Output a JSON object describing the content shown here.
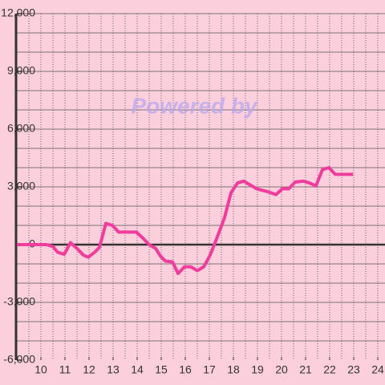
{
  "chart_data": {
    "type": "line",
    "watermark": "Powered by",
    "x": [
      9.0,
      10.23,
      10.5,
      10.7,
      10.97,
      11.23,
      11.5,
      11.77,
      11.97,
      12.23,
      12.43,
      12.7,
      12.97,
      13.23,
      13.5,
      13.97,
      14.23,
      14.5,
      14.77,
      14.97,
      15.17,
      15.47,
      15.7,
      15.97,
      16.23,
      16.5,
      16.77,
      17.03,
      17.3,
      17.63,
      17.9,
      18.17,
      18.43,
      18.7,
      18.97,
      19.43,
      19.77,
      20.03,
      20.3,
      20.57,
      20.9,
      21.17,
      21.43,
      21.7,
      21.97,
      22.23,
      22.97
    ],
    "series": [
      {
        "color": "#f03c9c",
        "values": [
          0,
          0,
          -100,
          -400,
          -500,
          100,
          -200,
          -550,
          -650,
          -400,
          -150,
          1100,
          1000,
          650,
          650,
          650,
          350,
          0,
          -200,
          -600,
          -850,
          -900,
          -1500,
          -1150,
          -1150,
          -1350,
          -1150,
          -550,
          300,
          1400,
          2700,
          3200,
          3300,
          3100,
          2900,
          2750,
          2600,
          2900,
          2900,
          3250,
          3300,
          3200,
          3050,
          3900,
          4000,
          3650,
          3650
        ]
      }
    ],
    "xlim": [
      9,
      24.3
    ],
    "xticks": [
      10,
      11,
      12,
      13,
      14,
      15,
      16,
      17,
      18,
      19,
      20,
      21,
      22,
      23,
      24
    ],
    "x_minor_grid": [
      9.5,
      10,
      10.5,
      11,
      11.5,
      12,
      12.5,
      13,
      13.5,
      14,
      14.5,
      15,
      15.5,
      16,
      16.5,
      17,
      17.5,
      18,
      18.5,
      19,
      19.5,
      20,
      20.5,
      21,
      21.5,
      22,
      22.5,
      23,
      23.5,
      24
    ],
    "ylim": [
      -6000,
      12000
    ],
    "yticks": [
      {
        "value": -6000,
        "label": "-6,000"
      },
      {
        "value": -3000,
        "label": "-3,000"
      },
      0,
      {
        "value": 3000,
        "label": "3,000"
      },
      {
        "value": 6000,
        "label": "6,000"
      },
      {
        "value": 9000,
        "label": "9,000"
      },
      {
        "value": 12000,
        "label": "12,000"
      }
    ],
    "y_minor_grid": [
      -5000,
      -4000,
      -3000,
      -2000,
      -1000,
      1000,
      2000,
      3000,
      4000,
      5000,
      6000,
      7000,
      8000,
      9000,
      10000,
      11000,
      12000
    ],
    "grid": true
  }
}
